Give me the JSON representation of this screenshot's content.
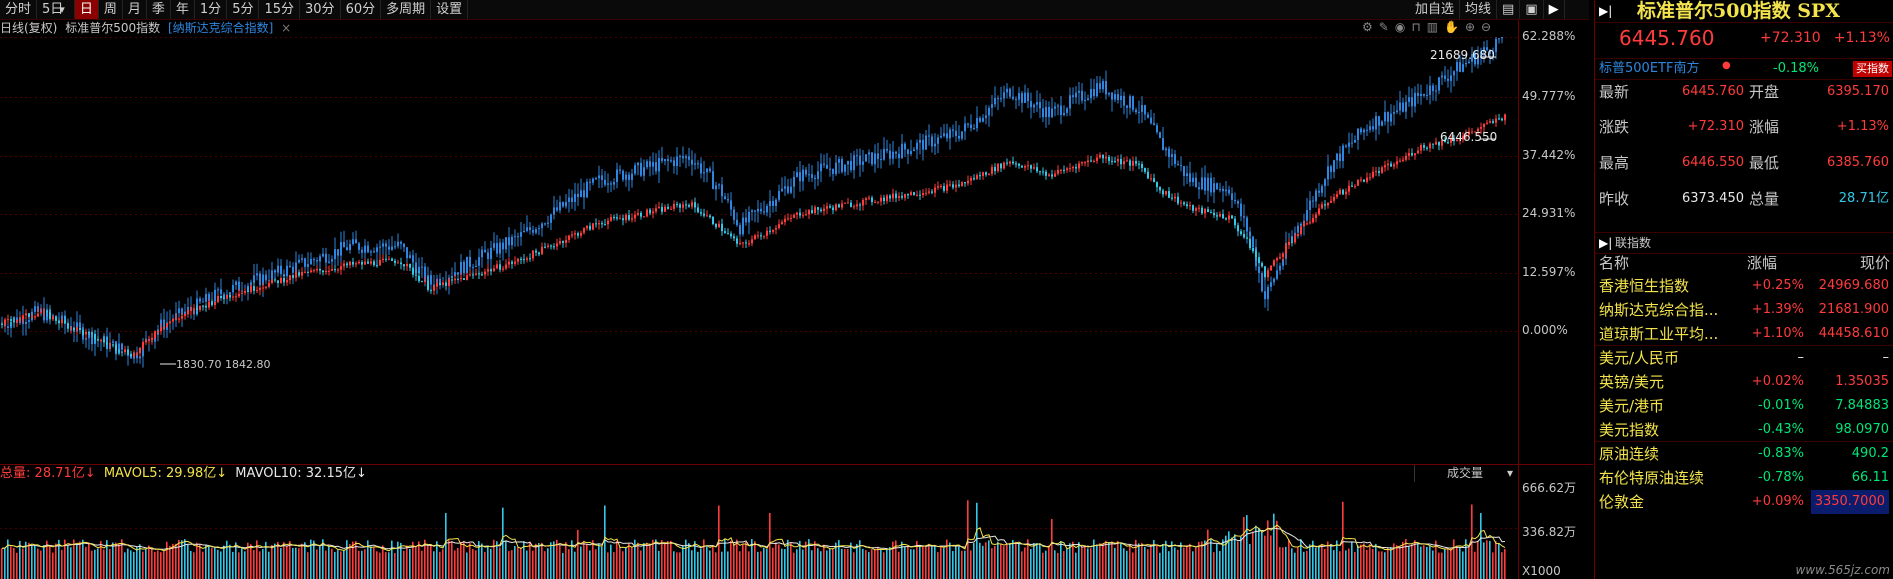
{
  "toolbar": {
    "items": [
      "分时",
      "5日",
      "日",
      "周",
      "月",
      "季",
      "年",
      "1分",
      "5分",
      "15分",
      "30分",
      "60分",
      "多周期",
      "设置"
    ],
    "active": "日",
    "right_items": [
      "加自选",
      "均线"
    ]
  },
  "subheader": {
    "mode": "日线(复权)",
    "main_name": "标准普尔500指数",
    "compare_name": "[纳斯达克综合指数]",
    "close_glyph": "×"
  },
  "chart": {
    "axis_labels": [
      "62.288%",
      "49.777%",
      "37.442%",
      "24.931%",
      "12.597%",
      "0.000%"
    ],
    "annotations": {
      "nasdaq_high": "21689.680",
      "spx_high": "6446.550",
      "low_overlap": "1830.70 1842.80"
    },
    "icons": [
      "gear-icon",
      "pencil-icon",
      "eye-icon",
      "lock-icon",
      "trash-icon",
      "hand-icon",
      "zoom-in-icon",
      "zoom-out-icon"
    ]
  },
  "volume": {
    "total_label": "总量",
    "total_value": "28.71亿",
    "mavol5_label": "MAVOL5:",
    "mavol5_value": "29.98亿",
    "mavol10_label": "MAVOL10:",
    "mavol10_value": "32.15亿",
    "selector": "成交量",
    "axis": [
      "666.62万",
      "336.82万",
      "X1000"
    ]
  },
  "quote": {
    "title": "标准普尔500指数 SPX",
    "price": "6445.760",
    "change": "+72.310",
    "change_pct": "+1.13%",
    "etf_name": "标普500ETF南方",
    "etf_change": "-0.18%",
    "buy_button": "买指数",
    "rows": [
      {
        "n1": "最新",
        "v1": "6445.760",
        "c1": "red",
        "n2": "开盘",
        "v2": "6395.170",
        "c2": "red"
      },
      {
        "n1": "涨跌",
        "v1": "+72.310",
        "c1": "red",
        "n2": "涨幅",
        "v2": "+1.13%",
        "c2": "red"
      },
      {
        "n1": "最高",
        "v1": "6446.550",
        "c1": "red",
        "n2": "最低",
        "v2": "6385.760",
        "c2": "red"
      },
      {
        "n1": "昨收",
        "v1": "6373.450",
        "c1": "white",
        "n2": "总量",
        "v2": "28.71亿",
        "c2": "cyan"
      }
    ]
  },
  "related": {
    "header": "联指数",
    "col_name": "名称",
    "col_change": "涨幅",
    "col_price": "现价",
    "items": [
      {
        "name": "香港恒生指数",
        "chg": "+0.25%",
        "price": "24969.680",
        "dir": "red"
      },
      {
        "name": "纳斯达克综合指...",
        "chg": "+1.39%",
        "price": "21681.900",
        "dir": "red"
      },
      {
        "name": "道琼斯工业平均...",
        "chg": "+1.10%",
        "price": "44458.610",
        "dir": "red"
      },
      {
        "name": "美元/人民币",
        "chg": "–",
        "price": "–",
        "dir": "white"
      },
      {
        "name": "英镑/美元",
        "chg": "+0.02%",
        "price": "1.35035",
        "dir": "red"
      },
      {
        "name": "美元/港币",
        "chg": "-0.01%",
        "price": "7.84883",
        "dir": "green"
      },
      {
        "name": "美元指数",
        "chg": "-0.43%",
        "price": "98.0970",
        "dir": "green"
      },
      {
        "name": "原油连续",
        "chg": "-0.83%",
        "price": "490.2",
        "dir": "green"
      },
      {
        "name": "布伦特原油连续",
        "chg": "-0.78%",
        "price": "66.11",
        "dir": "green"
      },
      {
        "name": "伦敦金",
        "chg": "+0.09%",
        "price": "3350.7000",
        "dir": "red"
      }
    ]
  },
  "watermark": "www.565jz.com",
  "colors": {
    "up": "#ff3b3b",
    "down": "#00e676",
    "nasdaq": "#2e86de",
    "spx": "#33c8e8",
    "grid": "#3a0000",
    "accent": "#8b0000"
  }
}
